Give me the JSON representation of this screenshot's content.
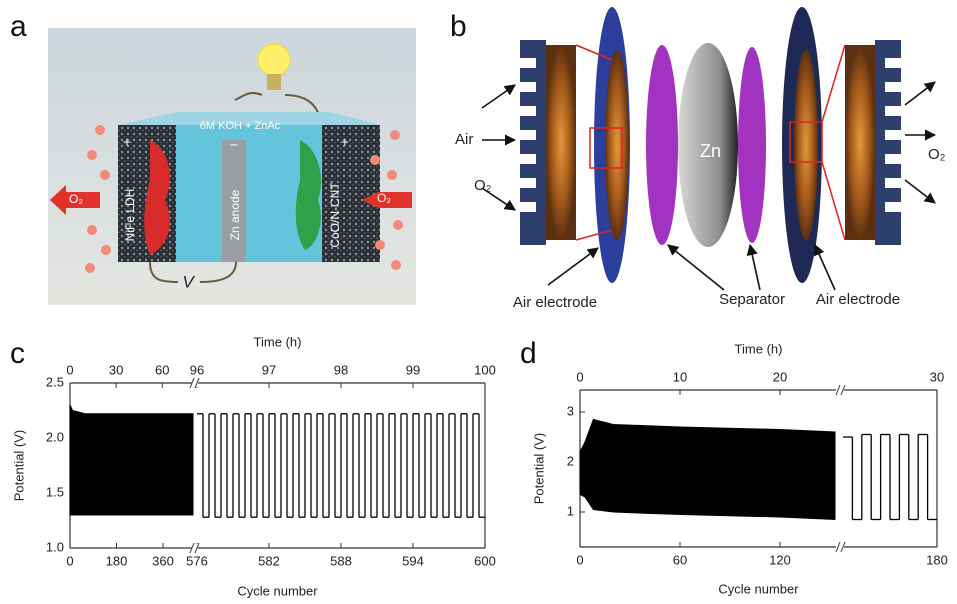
{
  "panels": {
    "a": {
      "label": "a",
      "electrolyte": "6M KOH + ZnAc",
      "cathode": "NiFe LDH",
      "anode": "Zn anode",
      "catalyst": "CoO/N-CNT",
      "left_gas": "O₂",
      "right_gas": "O₂",
      "voltage": "V",
      "plus_left": "+",
      "minus": "−",
      "plus_right": "+"
    },
    "b": {
      "label": "b",
      "air": "Air",
      "left_gas": "O₂",
      "zn": "Zn",
      "right_gas": "O₂",
      "left_electrode": "Air electrode",
      "separator": "Separator",
      "right_electrode": "Air electrode"
    },
    "c": {
      "label": "c"
    },
    "d": {
      "label": "d"
    }
  },
  "chart_data": [
    {
      "type": "line",
      "color": "#000000",
      "x_label": "Cycle number",
      "x2_label": "Time (h)",
      "y_label": "Potential (V)",
      "ylim": [
        1.0,
        2.5
      ],
      "yticks": [
        {
          "value": 1,
          "label": "1.0"
        },
        1.5,
        {
          "value": 2,
          "label": "2.0"
        },
        2.5
      ],
      "segments": [
        {
          "xlim": [
            0,
            476
          ],
          "xticks": [
            0,
            180,
            360
          ],
          "x2lim": [
            0,
            80
          ],
          "x2ticks": [
            0,
            30,
            60
          ],
          "x": [
            0,
            10,
            60,
            476
          ],
          "upper": [
            2.3,
            2.25,
            2.22,
            2.22
          ],
          "lower": [
            1.3,
            1.3,
            1.3,
            1.3
          ]
        },
        {
          "xlim": [
            576,
            600
          ],
          "xticks": [
            576,
            582,
            588,
            594,
            600
          ],
          "x2lim": [
            96,
            100
          ],
          "x2ticks": [
            96,
            97,
            98,
            99,
            100
          ],
          "x": [
            576,
            576.5,
            577,
            577.5,
            578,
            578.5,
            579,
            579.5,
            580,
            580.5,
            581,
            581.5,
            582,
            582.5,
            583,
            583.5,
            584,
            584.5,
            585,
            585.5,
            586,
            586.5,
            587,
            587.5,
            588,
            588.5,
            589,
            589.5,
            590,
            590.5,
            591,
            591.5,
            592,
            592.5,
            593,
            593.5,
            594,
            594.5,
            595,
            595.5,
            596,
            596.5,
            597,
            597.5,
            598,
            598.5,
            599,
            599.5
          ],
          "values": [
            2.22,
            1.28,
            2.22,
            1.28,
            2.22,
            1.28,
            2.22,
            1.28,
            2.22,
            1.28,
            2.22,
            1.28,
            2.22,
            1.28,
            2.22,
            1.28,
            2.22,
            1.28,
            2.22,
            1.28,
            2.22,
            1.28,
            2.22,
            1.28,
            2.22,
            1.28,
            2.22,
            1.28,
            2.22,
            1.28,
            2.22,
            1.28,
            2.22,
            1.28,
            2.22,
            1.28,
            2.22,
            1.28,
            2.22,
            1.28,
            2.22,
            1.28,
            2.22,
            1.28,
            2.22,
            1.28,
            2.22,
            1.28
          ]
        }
      ]
    },
    {
      "type": "line",
      "color": "#000000",
      "x_label": "Cycle number",
      "x2_label": "Time (h)",
      "y_label": "Potential (V)",
      "ylim": [
        0.3,
        3.44
      ],
      "yticks": [
        1,
        2,
        3
      ],
      "segments": [
        {
          "xlim": [
            0,
            153.6
          ],
          "xticks": [
            0,
            60,
            120
          ],
          "x2lim": [
            0,
            25.6
          ],
          "x2ticks": [
            0,
            10,
            20
          ],
          "x": [
            0,
            3,
            8,
            20,
            60,
            120,
            153
          ],
          "upper": [
            2.2,
            2.4,
            2.85,
            2.75,
            2.7,
            2.65,
            2.6
          ],
          "lower": [
            1.35,
            1.3,
            1.05,
            1.0,
            0.95,
            0.9,
            0.85
          ]
        },
        {
          "xlim": [
            175,
            180
          ],
          "xticks": [
            180
          ],
          "x2lim": [
            28.5,
            30
          ],
          "x2ticks": [
            30
          ],
          "x": [
            175,
            175.5,
            176,
            176.5,
            177,
            177.5,
            178,
            178.5,
            179,
            179.5
          ],
          "values": [
            2.5,
            0.85,
            2.55,
            0.85,
            2.55,
            0.85,
            2.55,
            0.85,
            2.55,
            0.85
          ]
        }
      ]
    }
  ]
}
